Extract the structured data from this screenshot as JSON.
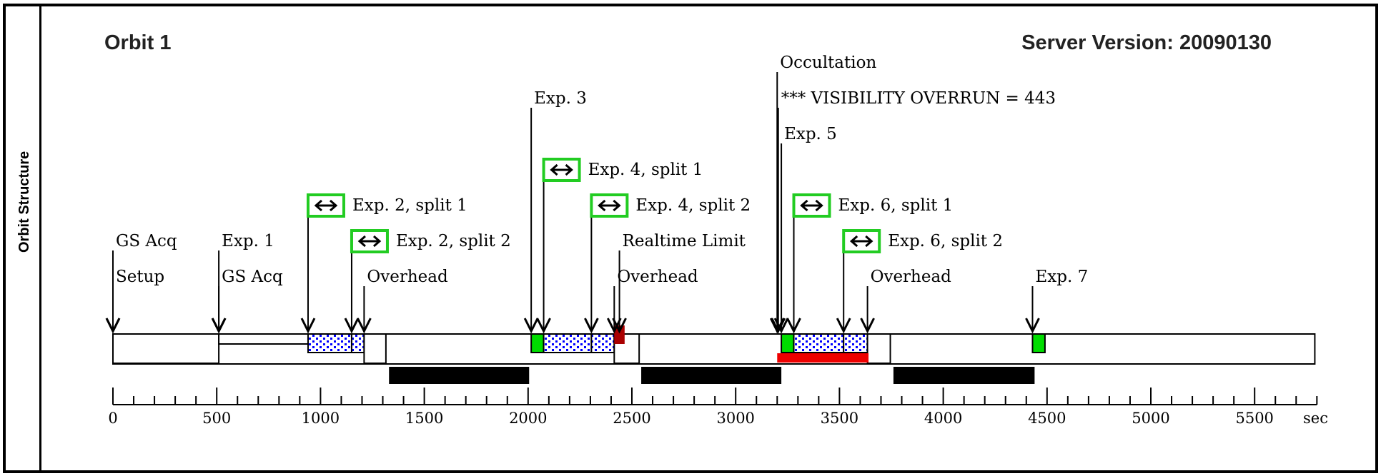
{
  "side_label": "Orbit Structure",
  "title": "Orbit 1",
  "server_version": "Server Version: 20090130",
  "colors": {
    "green": "#00dd00",
    "blue": "#0000ff",
    "dark_red": "#aa0000",
    "red": "#ee0000",
    "black": "#000000",
    "split_icon_border": "#22cc22"
  },
  "timeline": {
    "min": 0,
    "max": 5800,
    "unit": "sec",
    "ticks": [
      0,
      500,
      1000,
      1500,
      2000,
      2500,
      3000,
      3500,
      4000,
      4500,
      5000,
      5500
    ],
    "tick_labels": [
      "0",
      "500",
      "1000",
      "1500",
      "2000",
      "2500",
      "3000",
      "3500",
      "4000",
      "4500",
      "5000",
      "5500"
    ],
    "minor_step": 100,
    "orbit_end": 5790
  },
  "bars": [
    {
      "name": "setup-segment",
      "start": 0,
      "end": 510,
      "style": "white"
    },
    {
      "name": "gs-acq-segment",
      "start": 510,
      "end": 940,
      "style": "white-thin"
    },
    {
      "name": "exp-2-split-1-segment",
      "start": 940,
      "end": 1150,
      "style": "dots"
    },
    {
      "name": "exp-2-split-2-segment",
      "start": 1150,
      "end": 1210,
      "style": "dots"
    },
    {
      "name": "overhead-segment-1",
      "start": 1210,
      "end": 1315,
      "style": "white"
    },
    {
      "name": "exp-3-segment",
      "start": 2015,
      "end": 2075,
      "style": "green"
    },
    {
      "name": "exp-4-split-1-segment",
      "start": 2075,
      "end": 2305,
      "style": "dots"
    },
    {
      "name": "exp-4-split-2-segment",
      "start": 2305,
      "end": 2415,
      "style": "dots"
    },
    {
      "name": "overhead-segment-2",
      "start": 2415,
      "end": 2535,
      "style": "white"
    },
    {
      "name": "realtime-limit-segment",
      "start": 2415,
      "end": 2465,
      "style": "darkred"
    },
    {
      "name": "exp-5-segment",
      "start": 3220,
      "end": 3280,
      "style": "green"
    },
    {
      "name": "exp-6-split-1-segment",
      "start": 3280,
      "end": 3520,
      "style": "dots"
    },
    {
      "name": "exp-6-split-2-segment",
      "start": 3520,
      "end": 3635,
      "style": "dots"
    },
    {
      "name": "overhead-segment-3",
      "start": 3635,
      "end": 3745,
      "style": "white"
    },
    {
      "name": "exp-7-segment",
      "start": 4430,
      "end": 4490,
      "style": "green"
    }
  ],
  "red_band": {
    "start": 3200,
    "end": 3640
  },
  "occultations": [
    {
      "start": 1330,
      "end": 2005
    },
    {
      "start": 2545,
      "end": 3220
    },
    {
      "start": 3760,
      "end": 4440
    }
  ],
  "markers": [
    {
      "t": 0,
      "label": "Setup",
      "row": 6
    },
    {
      "t": 0,
      "label": "GS Acq",
      "row": 5
    },
    {
      "t": 510,
      "label": "GS Acq",
      "row": 6
    },
    {
      "t": 510,
      "label": "Exp. 1",
      "row": 5
    },
    {
      "t": 940,
      "label": "Exp. 2, split 1",
      "row": 4,
      "split": true
    },
    {
      "t": 1150,
      "label": "Exp. 2, split 2",
      "row": 5,
      "split": true
    },
    {
      "t": 1210,
      "label": "Overhead",
      "row": 6
    },
    {
      "t": 2015,
      "label": "Exp. 3",
      "row": 1
    },
    {
      "t": 2075,
      "label": "Exp. 4, split 1",
      "row": 3,
      "split": true
    },
    {
      "t": 2305,
      "label": "Exp. 4, split 2",
      "row": 4,
      "split": true
    },
    {
      "t": 2415,
      "label": "Overhead",
      "row": 6
    },
    {
      "t": 2440,
      "label": "Realtime Limit",
      "row": 5
    },
    {
      "t": 3200,
      "label": "Occultation",
      "row": 0
    },
    {
      "t": 3205,
      "label": "*** VISIBILITY OVERRUN = 443",
      "row": 1
    },
    {
      "t": 3220,
      "label": "Exp. 5",
      "row": 2
    },
    {
      "t": 3280,
      "label": "Exp. 6, split 1",
      "row": 4,
      "split": true
    },
    {
      "t": 3520,
      "label": "Exp. 6, split 2",
      "row": 5,
      "split": true
    },
    {
      "t": 3635,
      "label": "Overhead",
      "row": 6
    },
    {
      "t": 4430,
      "label": "Exp. 7",
      "row": 6
    }
  ]
}
